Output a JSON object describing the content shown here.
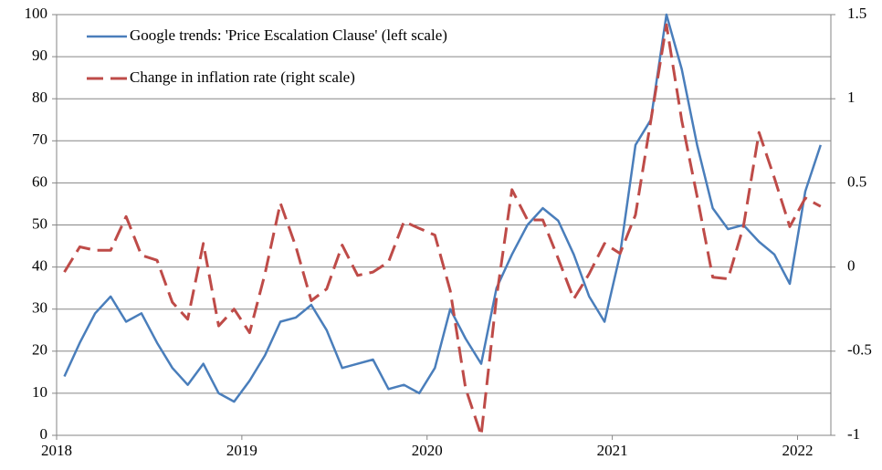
{
  "chart_data": {
    "type": "line",
    "x": [
      2018.042,
      2018.125,
      2018.208,
      2018.292,
      2018.375,
      2018.458,
      2018.542,
      2018.625,
      2018.708,
      2018.792,
      2018.875,
      2018.958,
      2019.042,
      2019.125,
      2019.208,
      2019.292,
      2019.375,
      2019.458,
      2019.542,
      2019.625,
      2019.708,
      2019.792,
      2019.875,
      2019.958,
      2020.042,
      2020.125,
      2020.208,
      2020.292,
      2020.375,
      2020.458,
      2020.542,
      2020.625,
      2020.708,
      2020.792,
      2020.875,
      2020.958,
      2021.042,
      2021.125,
      2021.208,
      2021.292,
      2021.375,
      2021.458,
      2021.542,
      2021.625,
      2021.708,
      2021.792,
      2021.875,
      2021.958,
      2022.042,
      2022.125
    ],
    "series": [
      {
        "name": "Google trends: 'Price Escalation Clause' (left scale)",
        "color": "#4a7ebb",
        "dash": false,
        "values": [
          14,
          22,
          29,
          33,
          27,
          29,
          22,
          16,
          12,
          17,
          10,
          8,
          13,
          19,
          27,
          28,
          31,
          25,
          16,
          17,
          18,
          11,
          12,
          10,
          16,
          30,
          23,
          17,
          35,
          43,
          50,
          54,
          51,
          43,
          33,
          27,
          43,
          69,
          75,
          100,
          87,
          69,
          54,
          49,
          50,
          46,
          43,
          36,
          58,
          69
        ]
      },
      {
        "name": "Change in inflation rate (right scale)",
        "color": "#be4b48",
        "dash": true,
        "axis": "y2",
        "values": [
          -0.03,
          0.12,
          0.1,
          0.1,
          0.3,
          0.07,
          0.04,
          -0.21,
          -0.31,
          0.14,
          -0.35,
          -0.25,
          -0.39,
          -0.04,
          0.38,
          0.12,
          -0.2,
          -0.13,
          0.13,
          -0.05,
          -0.03,
          0.03,
          0.27,
          0.23,
          0.19,
          -0.14,
          -0.72,
          -1.0,
          -0.18,
          0.46,
          0.28,
          0.28,
          0.05,
          -0.19,
          -0.04,
          0.14,
          0.08,
          0.31,
          0.87,
          1.44,
          0.87,
          0.42,
          -0.06,
          -0.07,
          0.24,
          0.8,
          0.53,
          0.24,
          0.41,
          0.36
        ]
      }
    ],
    "xlim": [
      2018,
      2022.18
    ],
    "xticks": [
      2018,
      2019,
      2020,
      2021,
      2022
    ],
    "ylim": [
      0,
      100
    ],
    "yticks": [
      0,
      10,
      20,
      30,
      40,
      50,
      60,
      70,
      80,
      90,
      100
    ],
    "y2lim": [
      -1,
      1.5
    ],
    "y2ticks": [
      -1,
      -0.5,
      0,
      0.5,
      1,
      1.5
    ],
    "grid": true,
    "legend": "upper-left"
  }
}
